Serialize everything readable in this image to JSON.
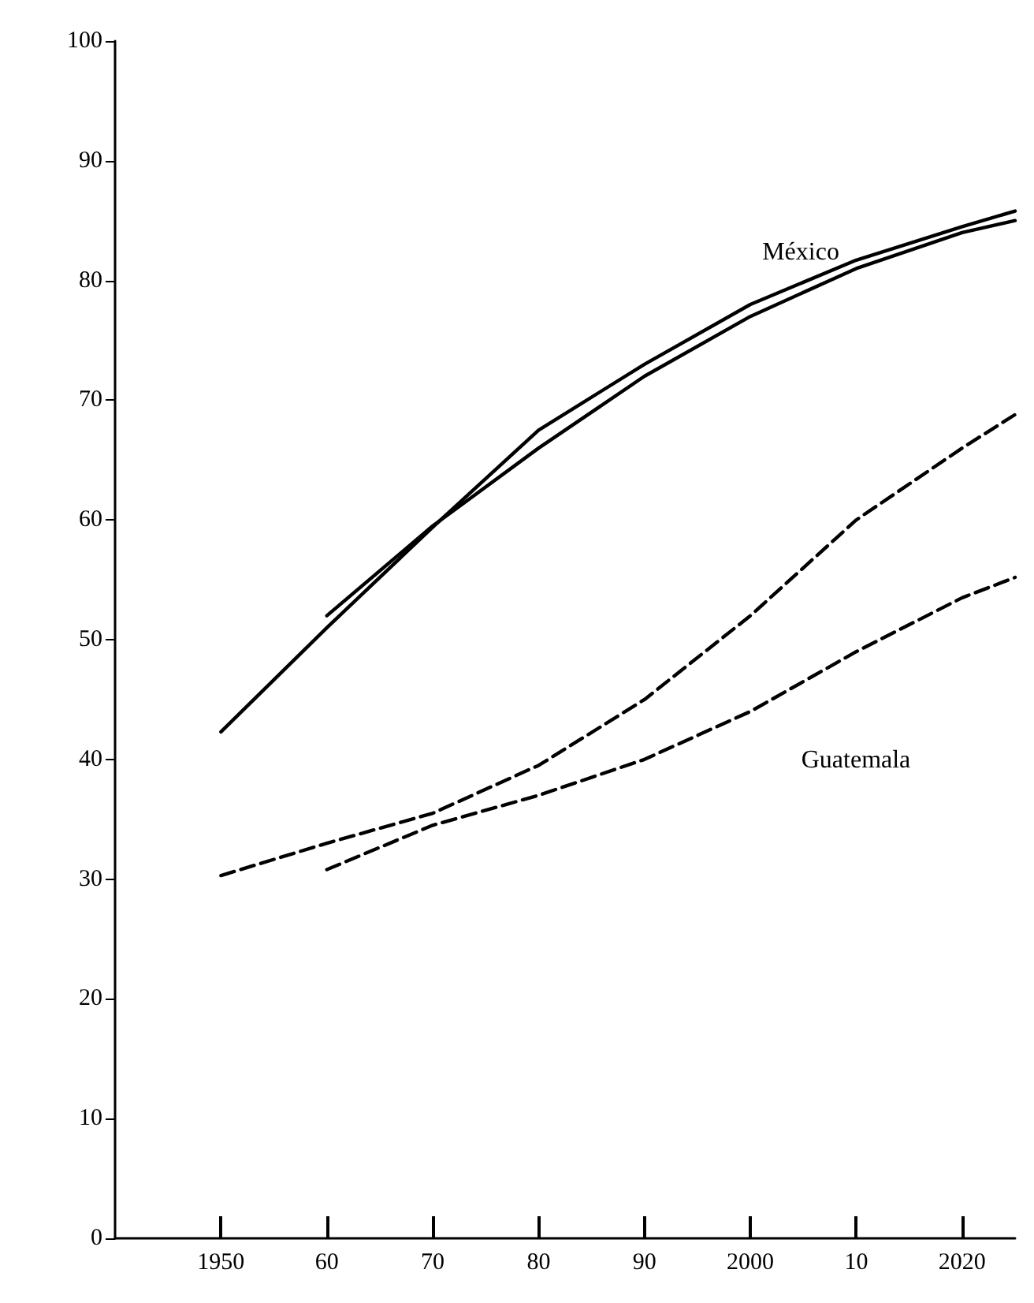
{
  "chart_data": {
    "type": "line",
    "xlim": [
      1940,
      2025
    ],
    "ylim": [
      0,
      100
    ],
    "xticks": [
      1950,
      {
        "value": 1960,
        "label": "60"
      },
      {
        "value": 1970,
        "label": "70"
      },
      {
        "value": 1980,
        "label": "80"
      },
      {
        "value": 1990,
        "label": "90"
      },
      2000,
      {
        "value": 2010,
        "label": "10"
      },
      2020
    ],
    "yticks": [
      0,
      10,
      20,
      30,
      40,
      50,
      60,
      70,
      80,
      90,
      100
    ],
    "series": [
      {
        "color": "#000000",
        "line_style": "solid",
        "x": [
          1950,
          1960,
          1970,
          1980,
          1990,
          2000,
          2010,
          2020,
          2025
        ],
        "values": [
          42.3,
          51,
          59.4,
          67.5,
          73,
          78,
          81.7,
          84.5,
          85.8
        ]
      },
      {
        "color": "#000000",
        "line_style": "solid",
        "x": [
          1960,
          1970,
          1980,
          1990,
          2000,
          2010,
          2020,
          2025
        ],
        "values": [
          52,
          59.5,
          66,
          72,
          77,
          81,
          84,
          85
        ]
      },
      {
        "color": "#000000",
        "line_style": "dashed",
        "x": [
          1950,
          1960,
          1970,
          1980,
          1990,
          2000,
          2010,
          2020,
          2025
        ],
        "values": [
          30.3,
          33,
          35.5,
          39.5,
          45,
          52,
          60,
          66,
          68.8
        ]
      },
      {
        "color": "#000000",
        "line_style": "dashed",
        "x": [
          1960,
          1970,
          1980,
          1990,
          2000,
          2010,
          2020,
          2025
        ],
        "values": [
          30.8,
          34.5,
          37,
          40,
          44,
          49,
          53.5,
          55.2
        ]
      }
    ],
    "annotations": [
      "México",
      "Guatemala"
    ],
    "marker": "none",
    "grid": false
  }
}
